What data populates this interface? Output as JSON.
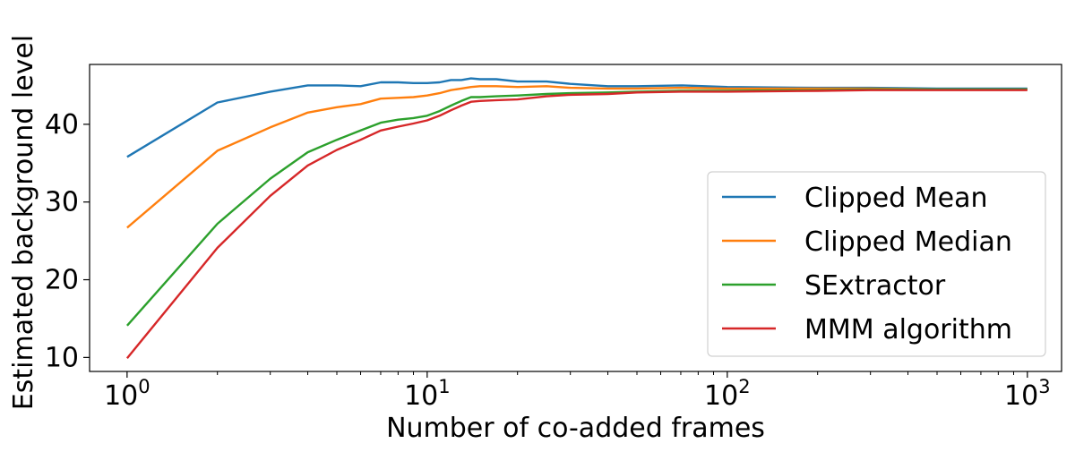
{
  "chart_data": {
    "type": "line",
    "xlabel": "Number of co-added frames",
    "ylabel": "Estimated background level",
    "xscale": "log",
    "xlim": [
      0.75,
      1300
    ],
    "ylim": [
      8.2,
      47.7
    ],
    "xticks": [
      {
        "value": 1,
        "base": "10",
        "exp": "0"
      },
      {
        "value": 10,
        "base": "10",
        "exp": "1"
      },
      {
        "value": 100,
        "base": "10",
        "exp": "2"
      },
      {
        "value": 1000,
        "base": "10",
        "exp": "3"
      }
    ],
    "yticks": [
      10,
      20,
      30,
      40
    ],
    "grid": false,
    "legend_position": "lower right",
    "series": [
      {
        "name": "Clipped Mean",
        "color": "#1f77b4",
        "x": [
          1,
          2,
          3,
          4,
          5,
          6,
          7,
          8,
          9,
          10,
          11,
          12,
          13,
          14,
          15,
          17,
          20,
          25,
          30,
          40,
          50,
          70,
          100,
          200,
          300,
          500,
          1000
        ],
        "y": [
          35.8,
          42.8,
          44.2,
          45.0,
          45.0,
          44.9,
          45.4,
          45.4,
          45.3,
          45.3,
          45.4,
          45.7,
          45.7,
          45.9,
          45.8,
          45.8,
          45.5,
          45.5,
          45.2,
          44.9,
          44.9,
          45.0,
          44.8,
          44.7,
          44.7,
          44.6,
          44.6
        ]
      },
      {
        "name": "Clipped Median",
        "color": "#ff7f0e",
        "x": [
          1,
          2,
          3,
          4,
          5,
          6,
          7,
          8,
          9,
          10,
          11,
          12,
          13,
          14,
          15,
          17,
          20,
          25,
          30,
          40,
          50,
          70,
          100,
          200,
          300,
          500,
          1000
        ],
        "y": [
          26.7,
          36.6,
          39.6,
          41.5,
          42.2,
          42.6,
          43.3,
          43.4,
          43.5,
          43.7,
          44.0,
          44.4,
          44.6,
          44.8,
          44.9,
          44.9,
          44.8,
          44.9,
          44.7,
          44.6,
          44.6,
          44.7,
          44.6,
          44.6,
          44.6,
          44.5,
          44.5
        ]
      },
      {
        "name": "SExtractor",
        "color": "#2ca02c",
        "x": [
          1,
          2,
          3,
          4,
          5,
          6,
          7,
          8,
          9,
          10,
          11,
          12,
          13,
          14,
          15,
          17,
          20,
          25,
          30,
          40,
          50,
          70,
          100,
          200,
          300,
          500,
          1000
        ],
        "y": [
          14.1,
          27.2,
          33.0,
          36.4,
          38.0,
          39.2,
          40.2,
          40.6,
          40.8,
          41.1,
          41.7,
          42.4,
          43.0,
          43.5,
          43.5,
          43.6,
          43.7,
          43.9,
          44.0,
          44.1,
          44.2,
          44.3,
          44.3,
          44.4,
          44.5,
          44.5,
          44.5
        ]
      },
      {
        "name": "MMM algorithm",
        "color": "#d62728",
        "x": [
          1,
          2,
          3,
          4,
          5,
          6,
          7,
          8,
          9,
          10,
          11,
          12,
          13,
          14,
          15,
          17,
          20,
          25,
          30,
          40,
          50,
          70,
          100,
          200,
          300,
          500,
          1000
        ],
        "y": [
          9.9,
          24.1,
          30.8,
          34.7,
          36.7,
          38.0,
          39.2,
          39.7,
          40.1,
          40.5,
          41.1,
          41.8,
          42.4,
          42.9,
          43.0,
          43.1,
          43.2,
          43.6,
          43.8,
          43.9,
          44.1,
          44.2,
          44.2,
          44.3,
          44.4,
          44.4,
          44.4
        ]
      }
    ]
  }
}
